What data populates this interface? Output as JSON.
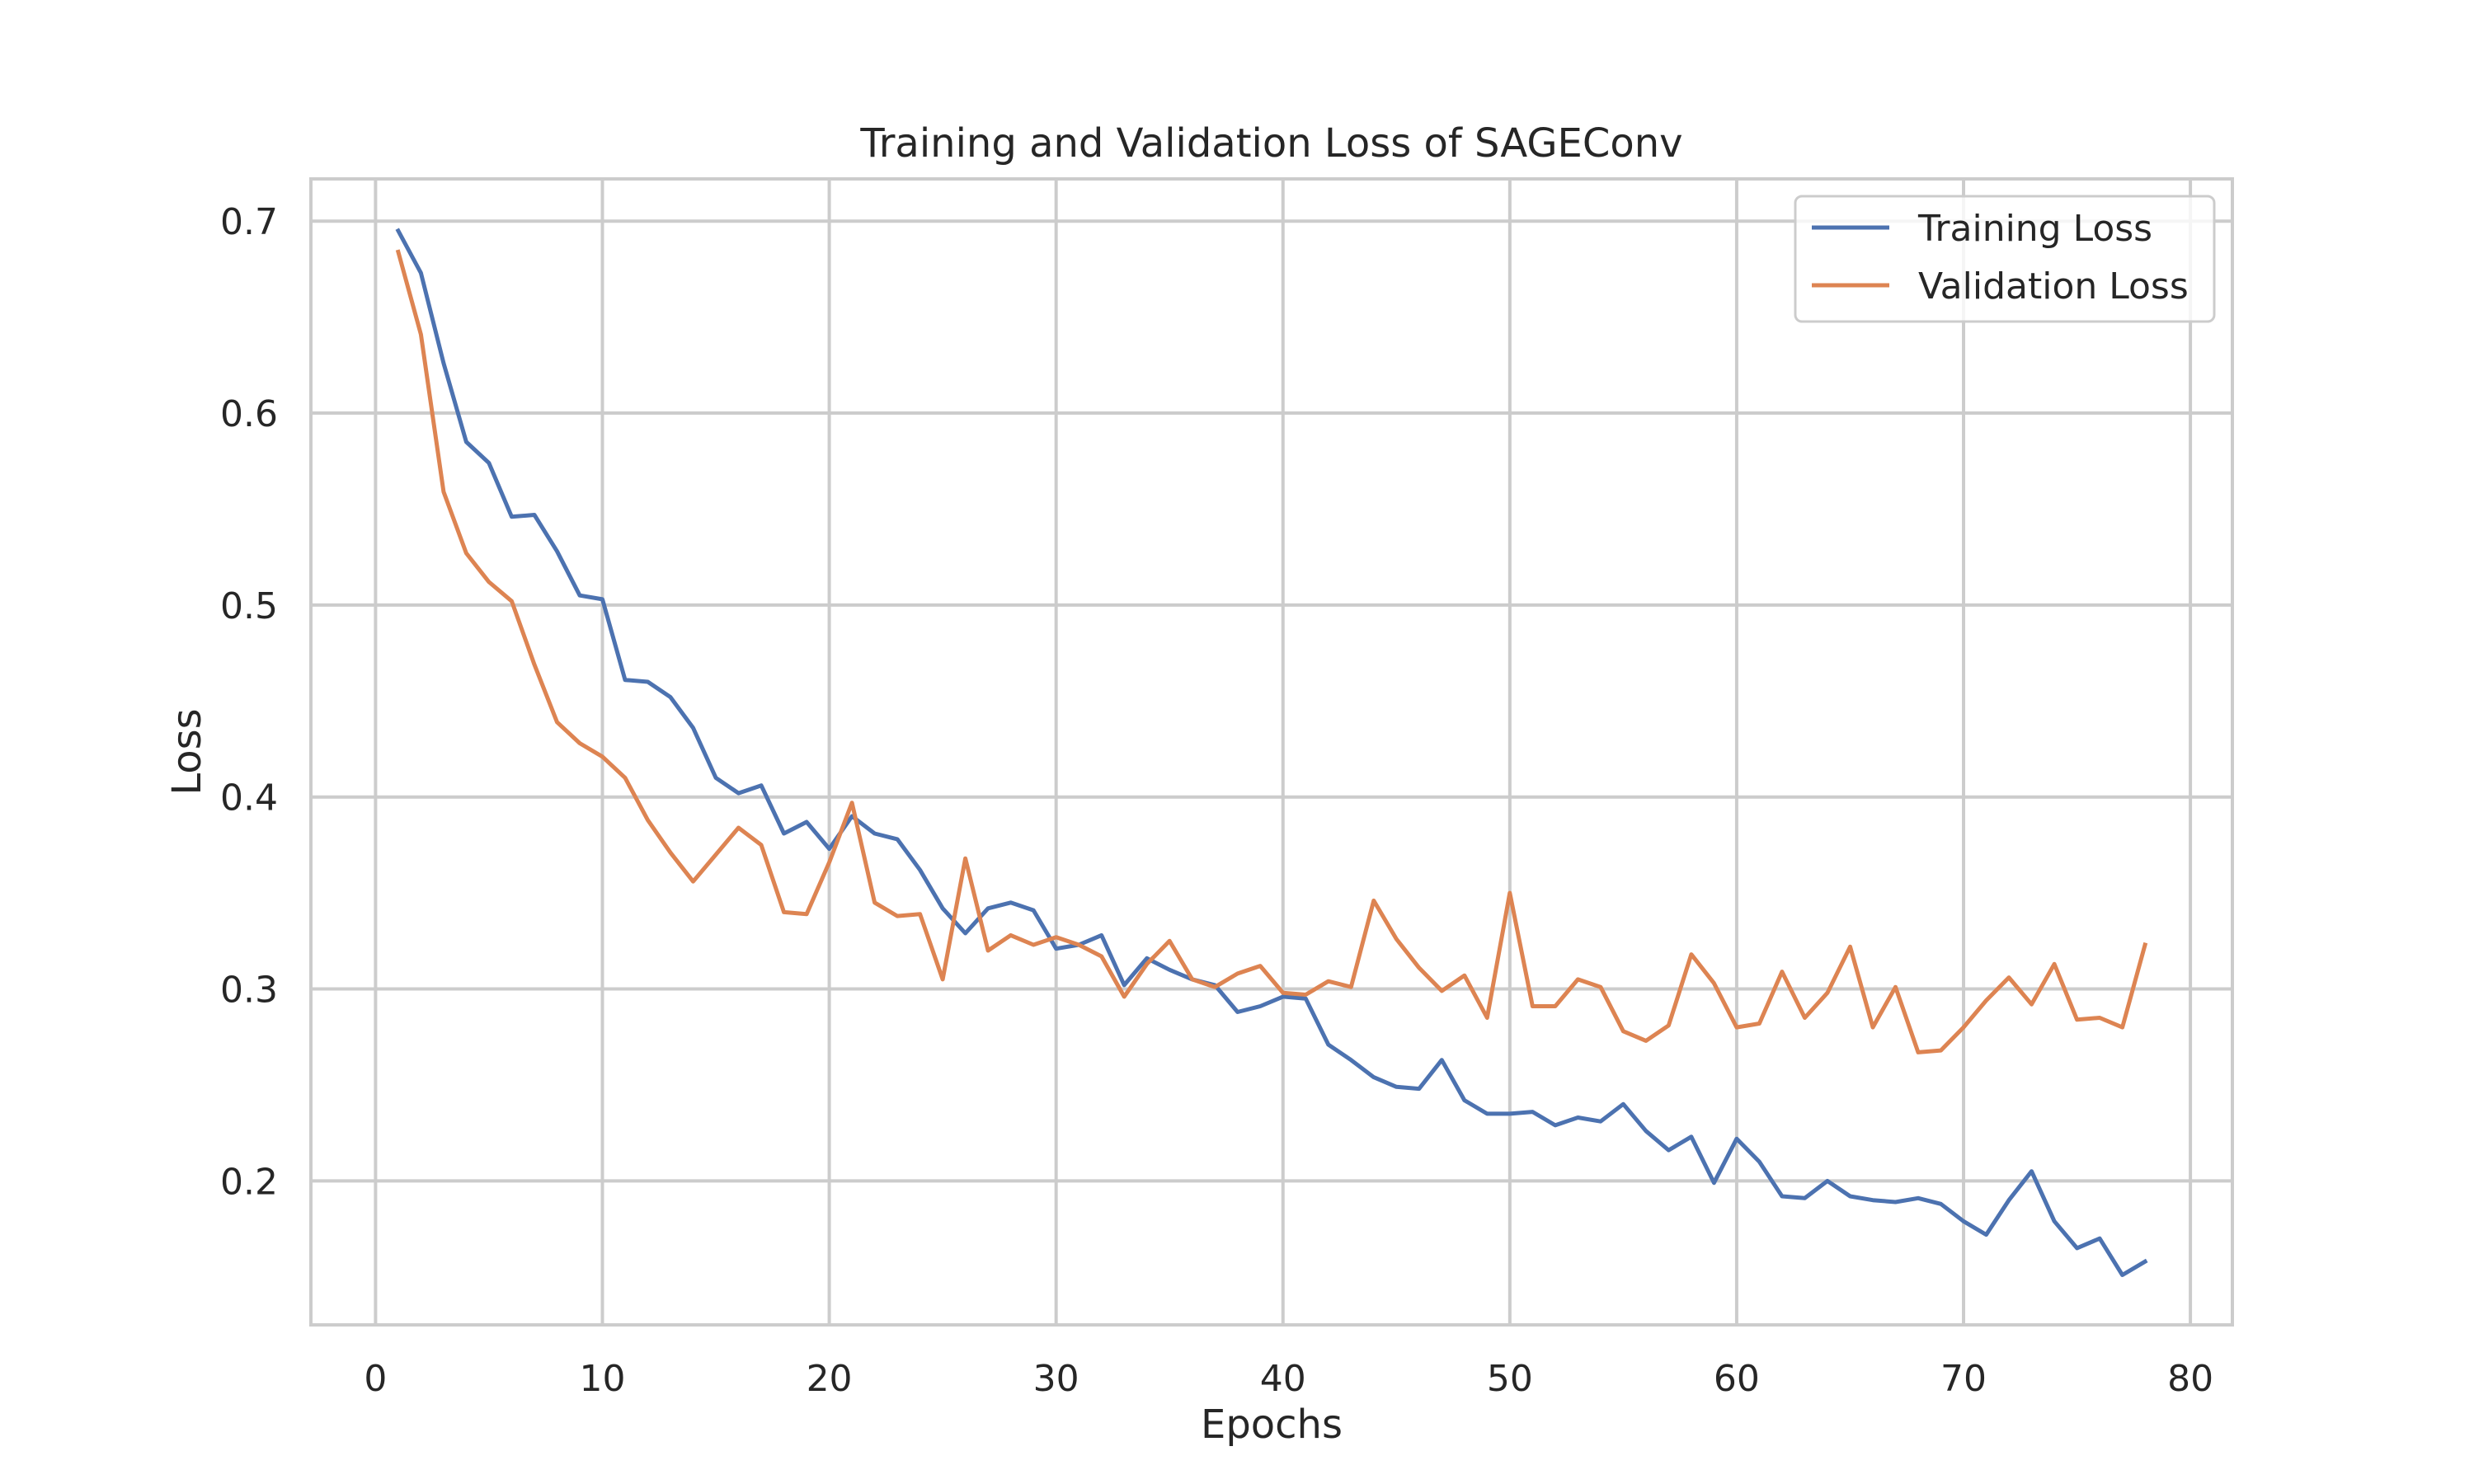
{
  "chart_data": {
    "type": "line",
    "title": "Training and Validation Loss of SAGEConv",
    "xlabel": "Epochs",
    "ylabel": "Loss",
    "xlim": [
      -2.85,
      81.85
    ],
    "ylim": [
      0.125,
      0.722
    ],
    "xticks": [
      0,
      10,
      20,
      30,
      40,
      50,
      60,
      70,
      80
    ],
    "yticks": [
      0.2,
      0.3,
      0.4,
      0.5,
      0.6,
      0.7
    ],
    "grid": true,
    "legend_position": "top-right",
    "x": [
      1,
      2,
      3,
      4,
      5,
      6,
      7,
      8,
      9,
      10,
      11,
      12,
      13,
      14,
      15,
      16,
      17,
      18,
      19,
      20,
      21,
      22,
      23,
      24,
      25,
      26,
      27,
      28,
      29,
      30,
      31,
      32,
      33,
      34,
      35,
      36,
      37,
      38,
      39,
      40,
      41,
      42,
      43,
      44,
      45,
      46,
      47,
      48,
      49,
      50,
      51,
      52,
      53,
      54,
      55,
      56,
      57,
      58,
      59,
      60,
      61,
      62,
      63,
      64,
      65,
      66,
      67,
      68,
      69,
      70,
      71,
      72,
      73,
      74,
      75,
      76,
      77,
      78
    ],
    "series": [
      {
        "name": "Training Loss",
        "color": "#4c72b0",
        "values": [
          0.695,
          0.673,
          0.626,
          0.585,
          0.574,
          0.546,
          0.547,
          0.528,
          0.505,
          0.503,
          0.461,
          0.46,
          0.452,
          0.436,
          0.41,
          0.402,
          0.406,
          0.381,
          0.387,
          0.373,
          0.39,
          0.381,
          0.378,
          0.362,
          0.342,
          0.329,
          0.342,
          0.345,
          0.341,
          0.321,
          0.323,
          0.328,
          0.302,
          0.316,
          0.31,
          0.305,
          0.302,
          0.288,
          0.291,
          0.296,
          0.295,
          0.271,
          0.263,
          0.254,
          0.249,
          0.248,
          0.263,
          0.242,
          0.235,
          0.235,
          0.236,
          0.229,
          0.233,
          0.231,
          0.24,
          0.226,
          0.216,
          0.223,
          0.199,
          0.222,
          0.21,
          0.192,
          0.191,
          0.2,
          0.192,
          0.19,
          0.189,
          0.191,
          0.188,
          0.179,
          0.172,
          0.19,
          0.205,
          0.179,
          0.165,
          0.17,
          0.151,
          0.158
        ]
      },
      {
        "name": "Validation Loss",
        "color": "#dd8452",
        "values": [
          0.684,
          0.641,
          0.559,
          0.527,
          0.512,
          0.502,
          0.469,
          0.439,
          0.428,
          0.421,
          0.41,
          0.388,
          0.371,
          0.356,
          0.37,
          0.384,
          0.375,
          0.34,
          0.339,
          0.366,
          0.397,
          0.345,
          0.338,
          0.339,
          0.305,
          0.368,
          0.32,
          0.328,
          0.323,
          0.327,
          0.323,
          0.317,
          0.296,
          0.313,
          0.325,
          0.305,
          0.301,
          0.308,
          0.312,
          0.298,
          0.297,
          0.304,
          0.301,
          0.346,
          0.326,
          0.311,
          0.299,
          0.307,
          0.285,
          0.35,
          0.291,
          0.291,
          0.305,
          0.301,
          0.278,
          0.273,
          0.281,
          0.318,
          0.303,
          0.28,
          0.282,
          0.309,
          0.285,
          0.298,
          0.322,
          0.28,
          0.301,
          0.267,
          0.268,
          0.28,
          0.294,
          0.306,
          0.292,
          0.313,
          0.284,
          0.285,
          0.28,
          0.323
        ]
      }
    ]
  }
}
